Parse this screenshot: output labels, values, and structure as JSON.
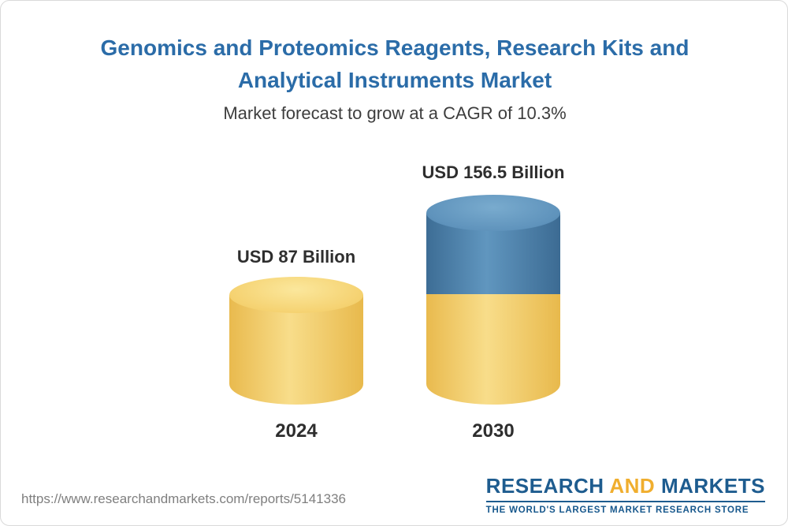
{
  "title": "Genomics and Proteomics Reagents, Research Kits and Analytical Instruments Market",
  "subtitle": "Market forecast to grow at a CAGR of 10.3%",
  "chart_data": {
    "type": "bar",
    "categories": [
      "2024",
      "2030"
    ],
    "values": [
      87,
      156.5
    ],
    "unit": "USD Billion",
    "value_labels": [
      "USD 87 Billion",
      "USD 156.5 Billion"
    ],
    "title": "Genomics and Proteomics Reagents, Research Kits and Analytical Instruments Market",
    "subtitle": "Market forecast to grow at a CAGR of 10.3%",
    "cagr_percent": 10.3,
    "legend_position": "none",
    "grid": false,
    "colors": {
      "base_segment": "#f0c75f",
      "growth_segment": "#4a7da7",
      "title_text": "#2b6ca8"
    }
  },
  "footer": {
    "url": "https://www.researchandmarkets.com/reports/5141336",
    "logo": {
      "word1": "RESEARCH",
      "word2": "AND",
      "word3": "MARKETS",
      "tagline": "THE WORLD'S LARGEST MARKET RESEARCH STORE"
    }
  }
}
